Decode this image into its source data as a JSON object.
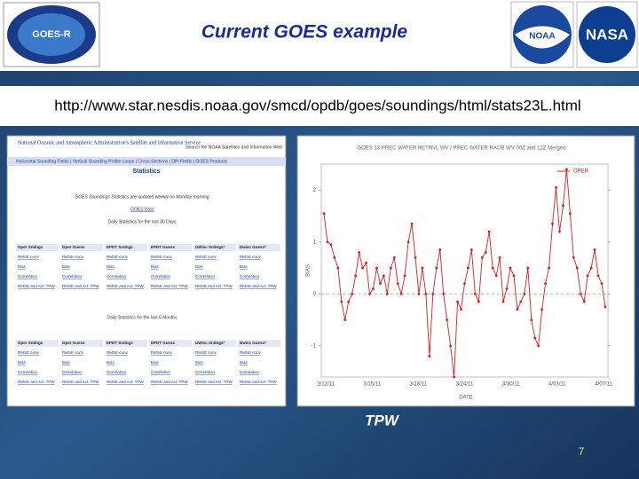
{
  "slide": {
    "title": "Current GOES example",
    "url": "http://www.star.nesdis.noaa.gov/smcd/opdb/goes/soundings/html/stats23L.html",
    "caption": "TPW",
    "page_number": "7",
    "logos": [
      "GOES-R",
      "NOAA",
      "NASA"
    ]
  },
  "web": {
    "header": "National Oceanic and Atmospheric Administration's Satellite and Information Service",
    "search": "Search the NOAA Satellites and Information Web",
    "nav": "Horizontal Sounding Fields | Vertical Sounding Profile Loops | Cross-Sections | DPI Fields | GOES Products",
    "section": "Statistics",
    "note": "GOES Soundings Statistics are updated weekly on Monday morning",
    "link": "GOES East",
    "tables": [
      {
        "title": "Daily Statistics for the last 30 Days",
        "header": [
          "Oper Sndngs",
          "Oper Guess",
          "EPDT Sndngs",
          "EPDT Guess",
          "UWisc Sndngs*",
          "Dwisc Guess*"
        ],
        "rows": [
          [
            "RMSE conv",
            "RMSE conv",
            "RMSE conv",
            "RMSE conv",
            "RMSE conv",
            "RMSE conv"
          ],
          [
            "Bias",
            "Bias",
            "Bias",
            "Bias",
            "Bias",
            "Bias"
          ],
          [
            "Correlation",
            "Correlation",
            "Correlation",
            "Correlation",
            "Correlation",
            "Correlation"
          ],
          [
            "RMSE and Act. TPW",
            "RMSE and Act. TPW",
            "RMSE and Act. TPW",
            "RMSE and Act. TPW",
            "RMSE and Act. TPW",
            "RMSE and Act. TPW"
          ]
        ]
      },
      {
        "title": "Daily Statistics for the last 6 Months",
        "header": [
          "Oper Sndngs",
          "Oper Guess",
          "EPDT Sndngs",
          "EPDT Guess",
          "UWisc Sndngs*",
          "Dwisc Guess*"
        ],
        "rows": [
          [
            "RMSE conv",
            "RMSE conv",
            "RMSE conv",
            "RMSE conv",
            "RMSE conv",
            "RMSE conv"
          ],
          [
            "Bias",
            "Bias",
            "Bias",
            "Bias",
            "Bias",
            "Bias"
          ],
          [
            "Correlation",
            "Correlation",
            "Correlation",
            "Correlation",
            "Correlation",
            "Correlation"
          ],
          [
            "RMSE and Act. TPW",
            "RMSE and Act. TPW",
            "RMSE and Act. TPW",
            "RMSE and Act. TPW",
            "RMSE and Act. TPW",
            "RMSE and Act. TPW"
          ]
        ]
      }
    ]
  },
  "chart_data": {
    "type": "line",
    "title": "GOES 13 PREC WATER RETRVL WV / PREC WATER RAOB WV 00Z and 12Z Merged",
    "ylabel": "BIAS",
    "xlabel": "DATE",
    "xticks": [
      "3/12/11",
      "3/15/11",
      "3/18/11",
      "3/24/11",
      "3/30/11",
      "4/03/11",
      "4/07/11"
    ],
    "ylim": [
      -1.6,
      2.5
    ],
    "yticks": [
      -1,
      0,
      1,
      2
    ],
    "series": [
      {
        "name": "OPER",
        "color": "#d42020",
        "values": [
          1.55,
          1.0,
          0.95,
          0.7,
          0.5,
          -0.15,
          -0.5,
          -0.15,
          0.0,
          0.35,
          0.8,
          0.5,
          0.6,
          0.0,
          0.1,
          0.5,
          0.2,
          0.35,
          0.0,
          0.5,
          0.7,
          0.2,
          0.0,
          0.35,
          1.0,
          1.35,
          0.7,
          0.0,
          0.5,
          0.0,
          -1.2,
          0.0,
          0.5,
          0.85,
          0.0,
          -0.5,
          -1.0,
          -1.6,
          -0.15,
          -0.3,
          0.2,
          0.5,
          0.85,
          0.0,
          -0.15,
          0.7,
          0.8,
          1.2,
          0.5,
          0.35,
          0.7,
          -0.15,
          0.1,
          0.5,
          0.35,
          -0.3,
          -0.15,
          0.0,
          0.5,
          -0.5,
          -0.85,
          -1.0,
          -0.3,
          0.2,
          0.5,
          1.35,
          2.05,
          1.2,
          1.7,
          2.4,
          1.55,
          0.7,
          0.5,
          0.0,
          -0.15,
          0.35,
          0.5,
          0.85,
          0.35,
          0.2,
          -0.25
        ]
      }
    ]
  }
}
